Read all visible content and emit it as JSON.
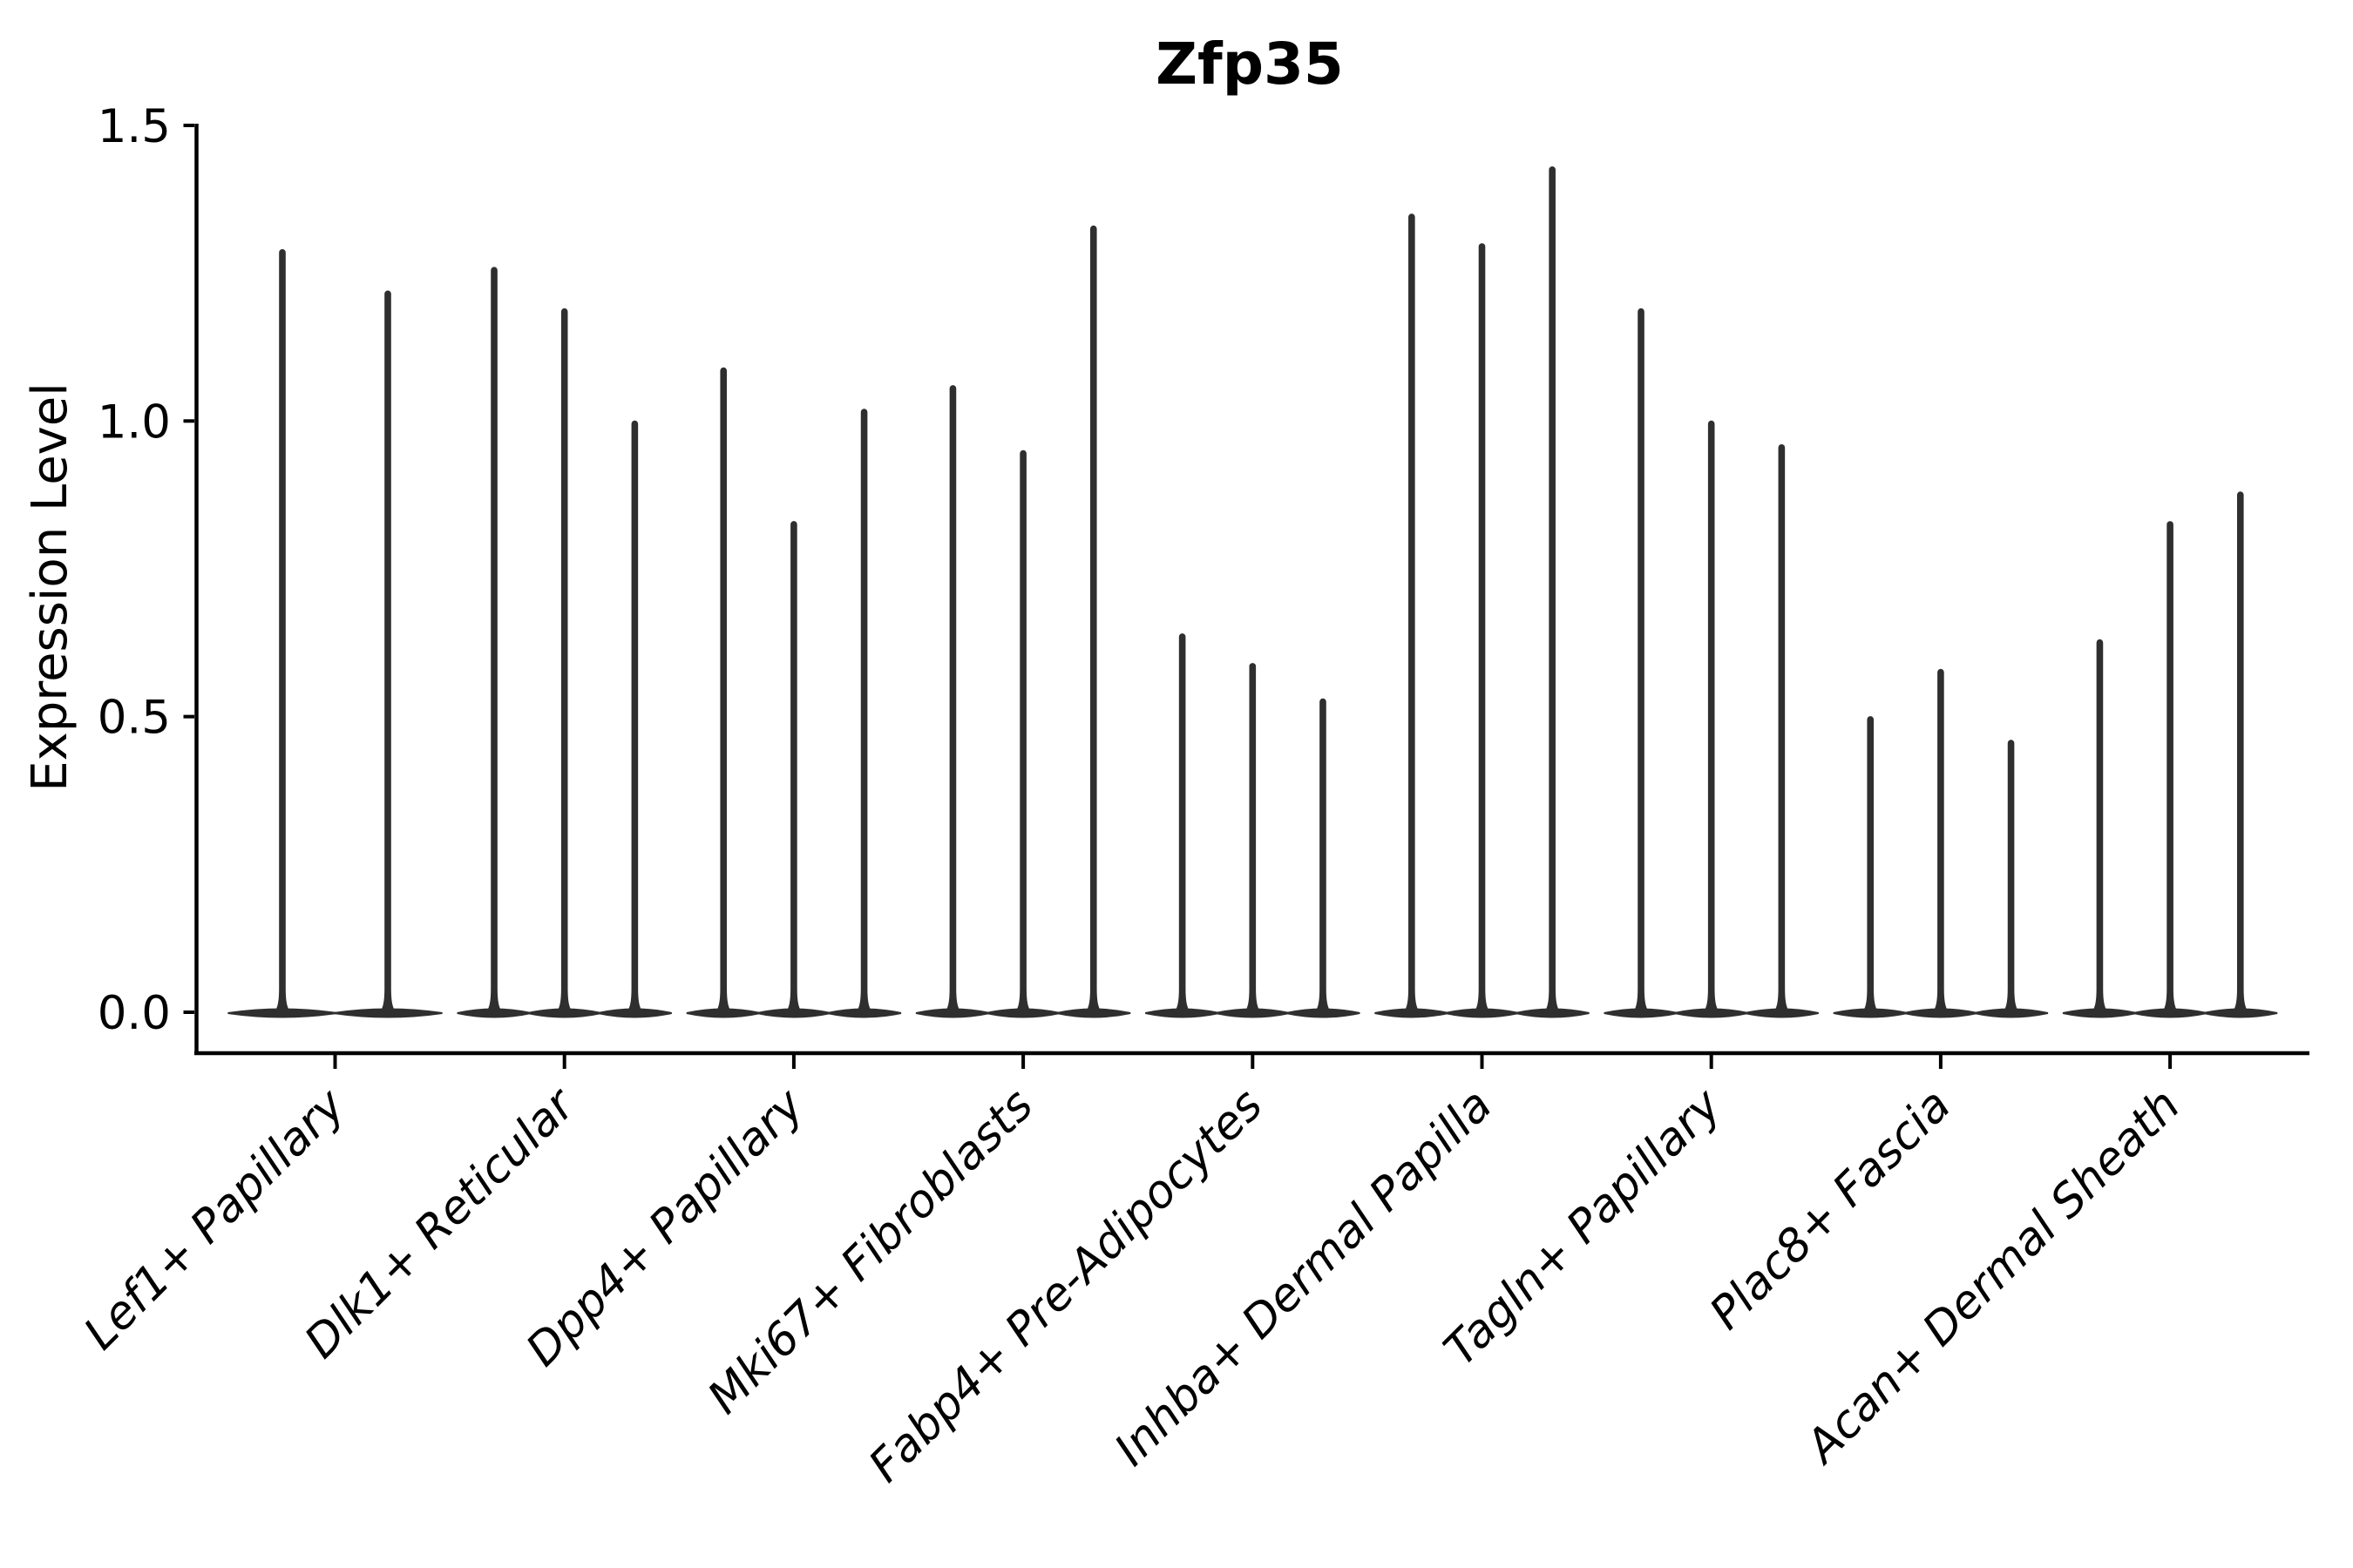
{
  "figure": {
    "background": "#ffffff"
  },
  "chart_data": {
    "type": "violin",
    "title": "Zfp35",
    "ylabel": "Expression Level",
    "xlabel": "",
    "ylim": [
      0,
      1.5
    ],
    "yticks": [
      {
        "label": "0.0",
        "value": 0.0
      },
      {
        "label": "0.5",
        "value": 0.5
      },
      {
        "label": "1.0",
        "value": 1.0
      },
      {
        "label": "1.5",
        "value": 1.5
      }
    ],
    "grid": false,
    "legend": "none",
    "violin_color": "#2f2f2f",
    "axis_color": "#000000",
    "categories": [
      "Lef1+ Papillary",
      "Dlk1+ Reticular",
      "Dpp4+ Papillary",
      "Mki67+ Fibroblasts",
      "Fabp4+ Pre-Adipocytes",
      "Inhba+ Dermal Papilla",
      "Tagln+ Papillary",
      "Plac8+ Fascia",
      "Acan+ Dermal Sheath"
    ],
    "groups": [
      {
        "category": "Lef1+ Papillary",
        "violin_max_values": [
          1.29,
          1.22
        ]
      },
      {
        "category": "Dlk1+ Reticular",
        "violin_max_values": [
          1.26,
          1.19,
          1.0
        ]
      },
      {
        "category": "Dpp4+ Papillary",
        "violin_max_values": [
          1.09,
          0.83,
          1.02
        ]
      },
      {
        "category": "Mki67+ Fibroblasts",
        "violin_max_values": [
          1.06,
          0.95,
          1.33
        ]
      },
      {
        "category": "Fabp4+ Pre-Adipocytes",
        "violin_max_values": [
          0.64,
          0.59,
          0.53
        ]
      },
      {
        "category": "Inhba+ Dermal Papilla",
        "violin_max_values": [
          1.35,
          1.3,
          1.43
        ]
      },
      {
        "category": "Tagln+ Papillary",
        "violin_max_values": [
          1.19,
          1.0,
          0.96
        ]
      },
      {
        "category": "Plac8+ Fascia",
        "violin_max_values": [
          0.5,
          0.58,
          0.46
        ]
      },
      {
        "category": "Acan+ Dermal Sheath",
        "violin_max_values": [
          0.63,
          0.83,
          0.88
        ]
      }
    ]
  }
}
